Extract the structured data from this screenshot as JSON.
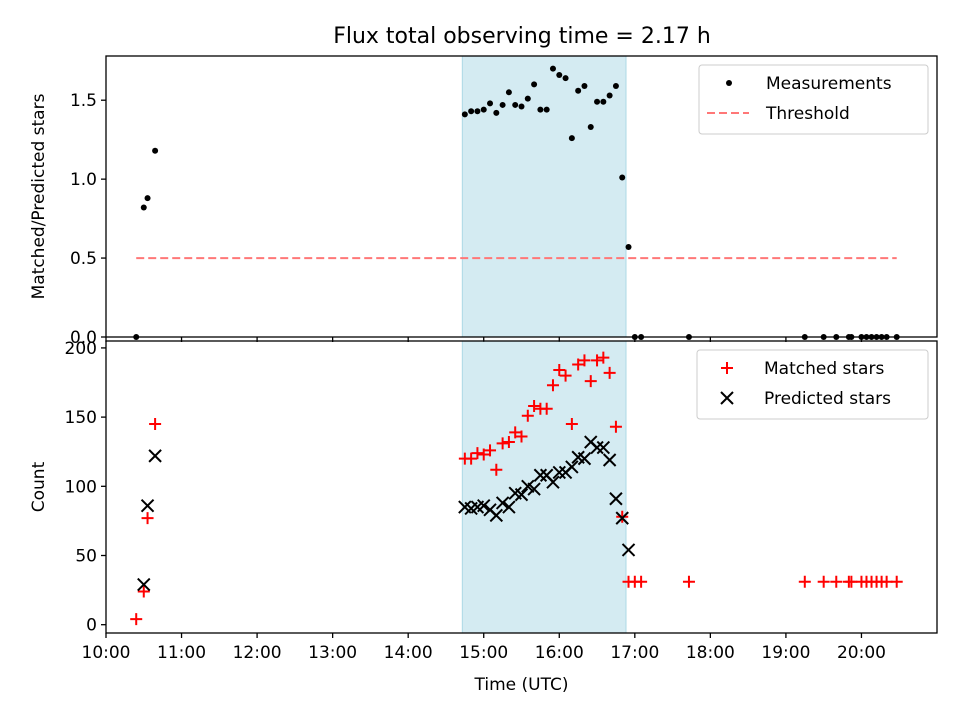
{
  "title": "Flux total observing time = 2.17 h",
  "chart_data": [
    {
      "type": "scatter",
      "ylabel": "Matched/Predicted stars",
      "xlabel": "",
      "xlim": [
        "10:00",
        "21:00"
      ],
      "ylim": [
        0,
        1.78
      ],
      "yticks": [
        "0.0",
        "0.5",
        "1.0",
        "1.5"
      ],
      "legend_position": "top-right",
      "shaded_interval": [
        "14:43",
        "16:53"
      ],
      "shade_color": "#add8e6",
      "series": [
        {
          "name": "Measurements",
          "kind": "points",
          "color": "#000000",
          "points": [
            [
              "10:24",
              0.0
            ],
            [
              "10:30",
              0.82
            ],
            [
              "10:33",
              0.88
            ],
            [
              "10:39",
              1.18
            ],
            [
              "14:45",
              1.41
            ],
            [
              "14:50",
              1.43
            ],
            [
              "14:55",
              1.43
            ],
            [
              "15:00",
              1.44
            ],
            [
              "15:05",
              1.48
            ],
            [
              "15:10",
              1.42
            ],
            [
              "15:15",
              1.47
            ],
            [
              "15:20",
              1.55
            ],
            [
              "15:25",
              1.47
            ],
            [
              "15:30",
              1.46
            ],
            [
              "15:35",
              1.51
            ],
            [
              "15:40",
              1.6
            ],
            [
              "15:45",
              1.44
            ],
            [
              "15:50",
              1.44
            ],
            [
              "15:55",
              1.7
            ],
            [
              "16:00",
              1.66
            ],
            [
              "16:05",
              1.64
            ],
            [
              "16:10",
              1.26
            ],
            [
              "16:15",
              1.56
            ],
            [
              "16:20",
              1.59
            ],
            [
              "16:25",
              1.33
            ],
            [
              "16:30",
              1.49
            ],
            [
              "16:35",
              1.49
            ],
            [
              "16:40",
              1.53
            ],
            [
              "16:45",
              1.59
            ],
            [
              "16:50",
              1.01
            ],
            [
              "16:55",
              0.57
            ],
            [
              "17:00",
              0.0
            ],
            [
              "17:05",
              0.0
            ],
            [
              "17:43",
              0.0
            ],
            [
              "19:15",
              0.0
            ],
            [
              "19:30",
              0.0
            ],
            [
              "19:40",
              0.0
            ],
            [
              "19:50",
              0.0
            ],
            [
              "19:52",
              0.0
            ],
            [
              "20:00",
              0.0
            ],
            [
              "20:04",
              0.0
            ],
            [
              "20:08",
              0.0
            ],
            [
              "20:12",
              0.0
            ],
            [
              "20:16",
              0.0
            ],
            [
              "20:20",
              0.0
            ],
            [
              "20:28",
              0.0
            ]
          ]
        },
        {
          "name": "Threshold",
          "kind": "dashed-line",
          "color": "#ff7777",
          "points": [
            [
              "10:24",
              0.5
            ],
            [
              "20:28",
              0.5
            ]
          ]
        }
      ]
    },
    {
      "type": "scatter",
      "ylabel": "Count",
      "xlabel": "Time (UTC)",
      "xlim": [
        "10:00",
        "21:00"
      ],
      "ylim": [
        -6,
        205
      ],
      "yticks": [
        "0",
        "50",
        "100",
        "150",
        "200"
      ],
      "xticks": [
        "10:00",
        "11:00",
        "12:00",
        "13:00",
        "14:00",
        "15:00",
        "16:00",
        "17:00",
        "18:00",
        "19:00",
        "20:00"
      ],
      "legend_position": "top-right",
      "shaded_interval": [
        "14:43",
        "16:53"
      ],
      "shade_color": "#add8e6",
      "series": [
        {
          "name": "Matched stars",
          "kind": "plus",
          "color": "#ff0000",
          "points": [
            [
              "10:24",
              4
            ],
            [
              "10:30",
              24
            ],
            [
              "10:33",
              77
            ],
            [
              "10:39",
              145
            ],
            [
              "14:45",
              120
            ],
            [
              "14:50",
              120
            ],
            [
              "14:55",
              124
            ],
            [
              "15:00",
              123
            ],
            [
              "15:05",
              126
            ],
            [
              "15:10",
              112
            ],
            [
              "15:15",
              131
            ],
            [
              "15:20",
              132
            ],
            [
              "15:25",
              139
            ],
            [
              "15:30",
              136
            ],
            [
              "15:35",
              151
            ],
            [
              "15:40",
              158
            ],
            [
              "15:45",
              156
            ],
            [
              "15:50",
              156
            ],
            [
              "15:55",
              173
            ],
            [
              "16:00",
              184
            ],
            [
              "16:05",
              180
            ],
            [
              "16:10",
              145
            ],
            [
              "16:15",
              188
            ],
            [
              "16:20",
              191
            ],
            [
              "16:25",
              176
            ],
            [
              "16:30",
              191
            ],
            [
              "16:35",
              193
            ],
            [
              "16:40",
              182
            ],
            [
              "16:45",
              143
            ],
            [
              "16:50",
              78
            ],
            [
              "16:55",
              31
            ],
            [
              "17:00",
              31
            ],
            [
              "17:05",
              31
            ],
            [
              "17:43",
              31
            ],
            [
              "19:15",
              31
            ],
            [
              "19:30",
              31
            ],
            [
              "19:40",
              31
            ],
            [
              "19:50",
              31
            ],
            [
              "19:52",
              31
            ],
            [
              "20:00",
              31
            ],
            [
              "20:04",
              31
            ],
            [
              "20:08",
              31
            ],
            [
              "20:12",
              31
            ],
            [
              "20:16",
              31
            ],
            [
              "20:20",
              31
            ],
            [
              "20:28",
              31
            ]
          ]
        },
        {
          "name": "Predicted stars",
          "kind": "cross",
          "color": "#000000",
          "points": [
            [
              "10:30",
              29
            ],
            [
              "10:33",
              86
            ],
            [
              "10:39",
              122
            ],
            [
              "14:45",
              85
            ],
            [
              "14:50",
              84
            ],
            [
              "14:55",
              85
            ],
            [
              "15:00",
              86
            ],
            [
              "15:05",
              83
            ],
            [
              "15:10",
              79
            ],
            [
              "15:15",
              88
            ],
            [
              "15:20",
              85
            ],
            [
              "15:25",
              95
            ],
            [
              "15:30",
              94
            ],
            [
              "15:35",
              100
            ],
            [
              "15:40",
              98
            ],
            [
              "15:45",
              108
            ],
            [
              "15:50",
              108
            ],
            [
              "15:55",
              103
            ],
            [
              "16:00",
              110
            ],
            [
              "16:05",
              110
            ],
            [
              "16:10",
              114
            ],
            [
              "16:15",
              121
            ],
            [
              "16:20",
              120
            ],
            [
              "16:25",
              132
            ],
            [
              "16:30",
              128
            ],
            [
              "16:35",
              128
            ],
            [
              "16:40",
              119
            ],
            [
              "16:45",
              91
            ],
            [
              "16:50",
              77
            ],
            [
              "16:55",
              54
            ]
          ]
        }
      ]
    }
  ]
}
